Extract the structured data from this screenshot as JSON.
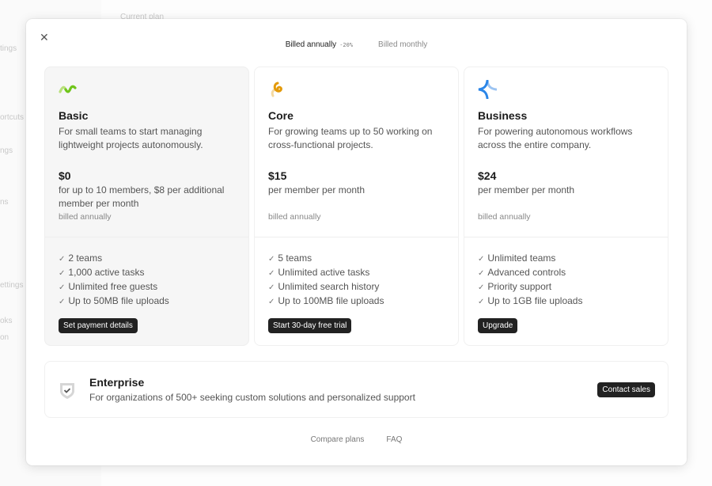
{
  "background": {
    "fragments": [
      "Current plan",
      "tings",
      "ortcuts",
      "ngs",
      "ns",
      "ettings",
      "oks",
      "on"
    ]
  },
  "billing": {
    "annual": "Billed annually",
    "discount": "-20%",
    "monthly": "Billed monthly"
  },
  "plans": [
    {
      "name": "Basic",
      "description": "For small teams to start managing lightweight projects autonomously.",
      "price": "$0",
      "per": "for up to 10 members, $8 per additional member per month",
      "billed": "billed annually",
      "features": [
        "2 teams",
        "1,000 active tasks",
        "Unlimited free guests",
        "Up to 50MB file uploads"
      ],
      "button": "Set payment details",
      "icon": "green-wave-icon",
      "current": true
    },
    {
      "name": "Core",
      "description": "For growing teams up to 50 working on cross-functional projects.",
      "price": "$15",
      "per": "per member per month",
      "billed": "billed annually",
      "features": [
        "5 teams",
        "Unlimited active tasks",
        "Unlimited search history",
        "Up to 100MB file uploads"
      ],
      "button": "Start 30-day free trial",
      "icon": "orange-swirl-icon"
    },
    {
      "name": "Business",
      "description": "For powering autonomous workflows across the entire company.",
      "price": "$24",
      "per": "per member per month",
      "billed": "billed annually",
      "features": [
        "Unlimited teams",
        "Advanced controls",
        "Priority support",
        "Up to 1GB file uploads"
      ],
      "button": "Upgrade",
      "icon": "blue-sparkle-icon"
    }
  ],
  "enterprise": {
    "title": "Enterprise",
    "description": "For organizations of 500+ seeking custom solutions and personalized support",
    "button": "Contact sales",
    "icon": "shield-check-icon"
  },
  "footer": {
    "compare": "Compare plans",
    "faq": "FAQ"
  },
  "colors": {
    "button": "#222222",
    "basic_icon": "#7ccf1a",
    "core_icon": "#e39a0a",
    "business_icon": "#2b86e8"
  }
}
